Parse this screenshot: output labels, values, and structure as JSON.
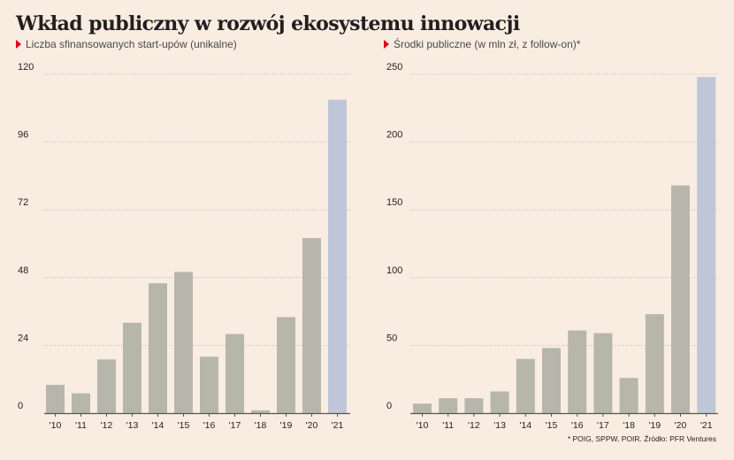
{
  "title": "Wkład publiczny w rozwój ekosystemu innowacji",
  "source_note": "* POIG, SPPW, POIR. Źródło: PFR Ventures",
  "colors": {
    "background": "#f9ece1",
    "bar": "#b7b6aa",
    "bar_highlight": "#bfc6d8",
    "marker": "#e3001b",
    "grid": "#b9b2a9"
  },
  "chart_data": [
    {
      "type": "bar",
      "title": "Liczba sfinansowanych start-upów (unikalne)",
      "categories": [
        "'10",
        "'11",
        "'12",
        "'13",
        "'14",
        "'15",
        "'16",
        "'17",
        "'18",
        "'19",
        "'20",
        "'21"
      ],
      "values": [
        10,
        7,
        19,
        32,
        46,
        50,
        20,
        28,
        1,
        34,
        62,
        111
      ],
      "highlight_index": 11,
      "ylim": [
        0,
        120
      ],
      "yticks": [
        0,
        24,
        48,
        72,
        96,
        120
      ],
      "grid": true,
      "xlabel": "",
      "ylabel": ""
    },
    {
      "type": "bar",
      "title": "Środki publiczne (w mln zł, z follow-on)*",
      "categories": [
        "'10",
        "'11",
        "'12",
        "'13",
        "'14",
        "'15",
        "'16",
        "'17",
        "'18",
        "'19",
        "'20",
        "'21"
      ],
      "values": [
        7,
        11,
        11,
        16,
        40,
        48,
        61,
        59,
        26,
        73,
        168,
        248
      ],
      "highlight_index": 11,
      "ylim": [
        0,
        250
      ],
      "yticks": [
        0,
        50,
        100,
        150,
        200,
        250
      ],
      "grid": true,
      "xlabel": "",
      "ylabel": ""
    }
  ]
}
